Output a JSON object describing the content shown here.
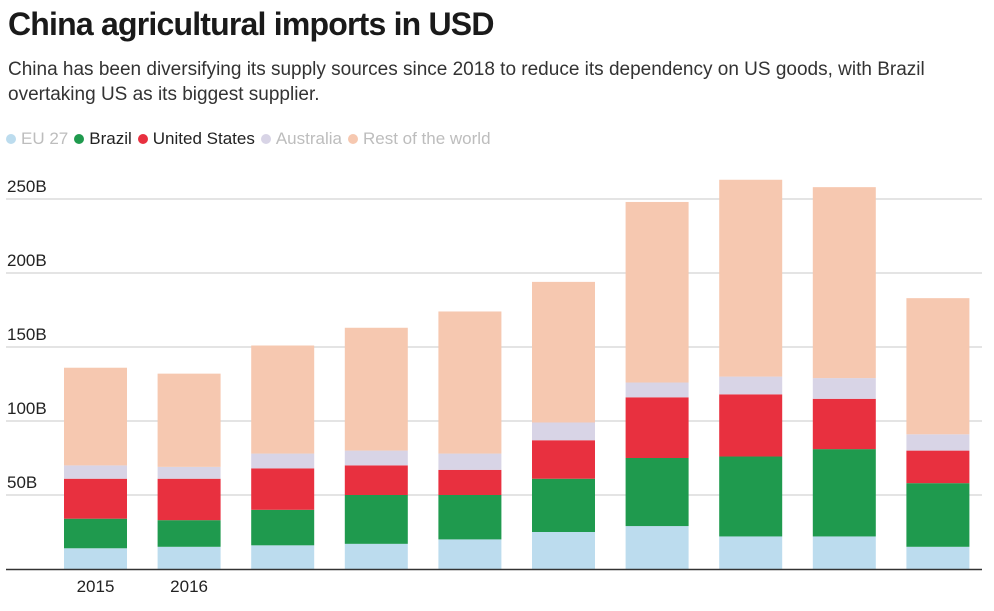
{
  "header": {
    "title": "China agricultural imports in USD",
    "subtitle": "China has been diversifying its supply sources since 2018 to reduce its dependency on US goods, with Brazil overtaking US as its biggest supplier."
  },
  "legend": [
    {
      "label": "EU 27",
      "color": "#bcdcee",
      "faded": true
    },
    {
      "label": "Brazil",
      "color": "#1f9a4e",
      "faded": false
    },
    {
      "label": "United States",
      "color": "#e8303f",
      "faded": false
    },
    {
      "label": "Australia",
      "color": "#d8d4e6",
      "faded": true
    },
    {
      "label": "Rest of the world",
      "color": "#f6c8b0",
      "faded": true
    }
  ],
  "chart_data": {
    "type": "bar",
    "stacked": true,
    "categories": [
      "2015",
      "2016",
      "",
      "",
      "",
      "",
      "",
      "",
      "",
      ""
    ],
    "y_tick_labels": [
      "50B",
      "100B",
      "150B",
      "200B",
      "250B"
    ],
    "y_ticks": [
      50,
      100,
      150,
      200,
      250
    ],
    "ylim": [
      0,
      265
    ],
    "grid": true,
    "legend_position": "top-left",
    "unit": "billion USD",
    "series": [
      {
        "name": "EU 27",
        "color": "#bcdcee",
        "values": [
          14,
          15,
          16,
          17,
          20,
          25,
          29,
          22,
          22,
          15
        ]
      },
      {
        "name": "Brazil",
        "color": "#1f9a4e",
        "values": [
          20,
          18,
          24,
          33,
          30,
          36,
          46,
          54,
          59,
          43
        ]
      },
      {
        "name": "United States",
        "color": "#e8303f",
        "values": [
          27,
          28,
          28,
          20,
          17,
          26,
          41,
          42,
          34,
          22
        ]
      },
      {
        "name": "Australia",
        "color": "#d8d4e6",
        "values": [
          9,
          8,
          10,
          10,
          11,
          12,
          10,
          12,
          14,
          11
        ]
      },
      {
        "name": "Rest of the world",
        "color": "#f6c8b0",
        "values": [
          66,
          63,
          73,
          83,
          96,
          95,
          122,
          133,
          129,
          92
        ]
      }
    ]
  }
}
